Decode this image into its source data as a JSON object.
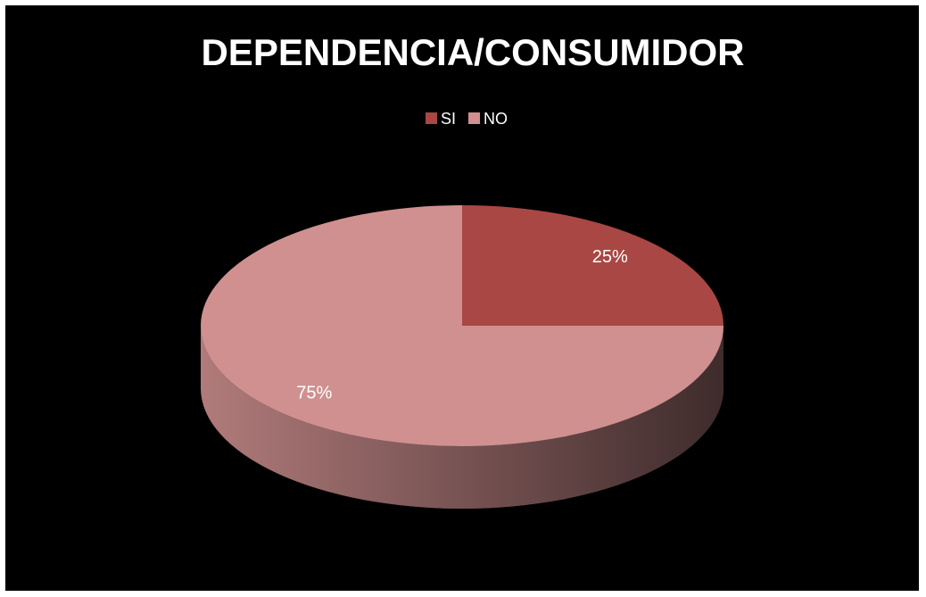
{
  "chart_data": {
    "type": "pie",
    "title": "DEPENDENCIA/CONSUMIDOR",
    "categories": [
      "SI",
      "NO"
    ],
    "values": [
      25,
      75
    ],
    "value_labels": [
      "25%",
      "75%"
    ],
    "colors": [
      "#a84744",
      "#d09090"
    ],
    "legend": "top"
  }
}
